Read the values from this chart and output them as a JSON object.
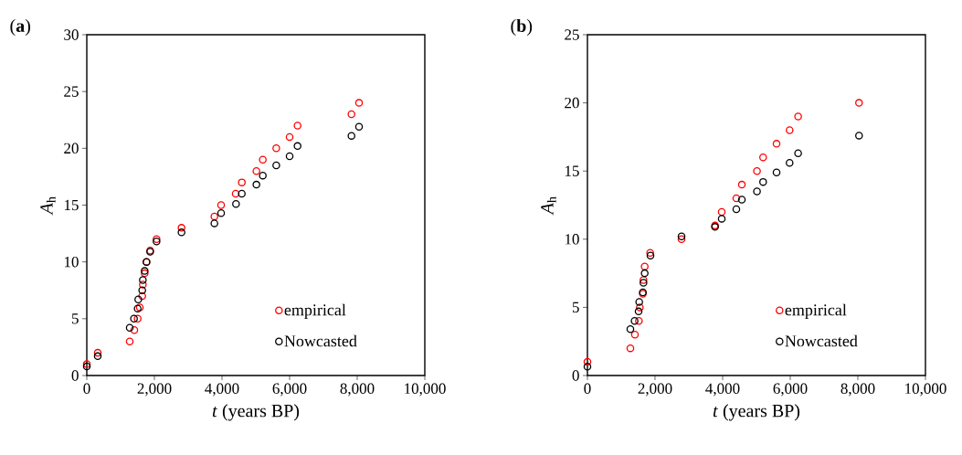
{
  "chart_data": [
    {
      "type": "scatter",
      "annotations": [
        "(**a**)"
      ],
      "xlabel": "*t*  (years BP)",
      "ylabel": "*A*$_{h}$",
      "marker": "circle",
      "legend": "bottom right",
      "grid": false,
      "xlim": [
        0,
        10000
      ],
      "ylim": [
        0,
        30
      ],
      "xticks": [
        0,
        {
          "value": 2000,
          "label": "2,000"
        },
        {
          "value": 4000,
          "label": "4,000"
        },
        {
          "value": 6000,
          "label": "6,000"
        },
        {
          "value": 8000,
          "label": "8,000"
        },
        {
          "value": 10000,
          "label": "10,000"
        }
      ],
      "yticks": [
        0,
        5,
        10,
        15,
        20,
        25,
        30
      ],
      "series": [
        {
          "name": "empirical",
          "color": "#ff0000",
          "x": [
            0,
            324,
            1270,
            1405,
            1505,
            1568,
            1640,
            1658,
            1712,
            1766,
            1874,
            2063,
            2802,
            3775,
            3973,
            4405,
            4586,
            5018,
            5207,
            5605,
            6000,
            6235,
            7830,
            8054
          ],
          "values": [
            1,
            2,
            3,
            4,
            5,
            6,
            7,
            8,
            9,
            10,
            11,
            12,
            13,
            14,
            15,
            16,
            17,
            18,
            19,
            20,
            21,
            22,
            23,
            24
          ]
        },
        {
          "name": "Nowcasted",
          "color": "#000000",
          "x": [
            0,
            324,
            1270,
            1396,
            1505,
            1523,
            1640,
            1658,
            1712,
            1766,
            1874,
            2063,
            2802,
            3775,
            3973,
            4414,
            4586,
            5018,
            5207,
            5605,
            6000,
            6235,
            7830,
            8054
          ],
          "values": [
            0.8,
            1.7,
            4.2,
            5.0,
            5.9,
            6.7,
            7.5,
            8.4,
            9.2,
            10.0,
            10.9,
            11.8,
            12.6,
            13.4,
            14.3,
            15.1,
            16.0,
            16.8,
            17.6,
            18.5,
            19.3,
            20.2,
            21.1,
            21.9
          ]
        }
      ]
    },
    {
      "type": "scatter",
      "annotations": [
        "(**b**)"
      ],
      "xlabel": "*t*  (years BP)",
      "ylabel": "*A*$_{h}$",
      "marker": "circle",
      "legend": "bottom right",
      "grid": false,
      "xlim": [
        0,
        10000
      ],
      "ylim": [
        0,
        25
      ],
      "xticks": [
        0,
        {
          "value": 2000,
          "label": "2,000"
        },
        {
          "value": 4000,
          "label": "4,000"
        },
        {
          "value": 6000,
          "label": "6,000"
        },
        {
          "value": 8000,
          "label": "8,000"
        },
        {
          "value": 10000,
          "label": "10,000"
        }
      ],
      "yticks": [
        0,
        5,
        10,
        15,
        20,
        25
      ],
      "series": [
        {
          "name": "empirical",
          "color": "#ff0000",
          "x": [
            0,
            1270,
            1405,
            1523,
            1550,
            1640,
            1658,
            1694,
            1856,
            2784,
            3775,
            3973,
            4405,
            4568,
            5016,
            5197,
            5595,
            5981,
            6233,
            8035
          ],
          "values": [
            1,
            2,
            3,
            4,
            5,
            6,
            7,
            8,
            9,
            10,
            11,
            12,
            13,
            14,
            15,
            16,
            17,
            18,
            19,
            20
          ]
        },
        {
          "name": "Nowcasted",
          "color": "#000000",
          "x": [
            0,
            1270,
            1396,
            1514,
            1532,
            1640,
            1658,
            1694,
            1865,
            2784,
            3775,
            3973,
            4405,
            4568,
            5016,
            5197,
            5595,
            5981,
            6233,
            8035
          ],
          "values": [
            0.65,
            3.4,
            4.0,
            4.7,
            5.4,
            6.1,
            6.8,
            7.5,
            8.8,
            10.2,
            10.9,
            11.5,
            12.2,
            12.9,
            13.5,
            14.2,
            14.9,
            15.6,
            16.3,
            17.6
          ]
        }
      ]
    }
  ]
}
